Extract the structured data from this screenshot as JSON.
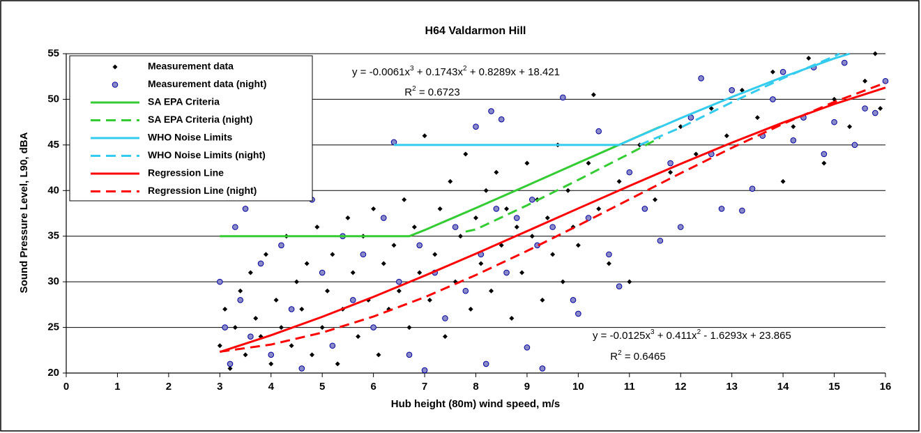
{
  "chart_data": {
    "type": "scatter",
    "title": "H64 Valdarmon Hill",
    "xlabel": "Hub height (80m) wind speed, m/s",
    "ylabel": "Sound Pressure Level, L90, dBA",
    "xlim": [
      0,
      16
    ],
    "ylim": [
      20,
      55
    ],
    "xticks": [
      0,
      1,
      2,
      3,
      4,
      5,
      6,
      7,
      8,
      9,
      10,
      11,
      12,
      13,
      14,
      15,
      16
    ],
    "yticks": [
      20,
      25,
      30,
      35,
      40,
      45,
      50,
      55
    ],
    "grid": true,
    "legend": "upper left",
    "annotations": [
      [
        "y = -0.0061x",
        "3",
        " + 0.1743x",
        "2",
        " + 0.8289x + 18.421"
      ],
      [
        "R",
        "2",
        " = 0.6723"
      ],
      [
        "y = -0.0125x",
        "3",
        " + 0.411x",
        "2",
        " - 1.6293x + 23.865"
      ],
      [
        "R",
        "2",
        " = 0.6465"
      ]
    ],
    "series": [
      {
        "name": "Measurement data",
        "marker": "diamond",
        "color": "#000000",
        "x": [
          3.0,
          3.1,
          3.2,
          3.3,
          3.4,
          3.5,
          3.6,
          3.7,
          3.8,
          3.9,
          4.0,
          4.1,
          4.2,
          4.3,
          4.4,
          4.5,
          4.6,
          4.7,
          4.8,
          4.9,
          5.0,
          5.1,
          5.2,
          5.3,
          5.4,
          5.5,
          5.6,
          5.7,
          5.8,
          5.9,
          6.0,
          6.1,
          6.2,
          6.3,
          6.4,
          6.5,
          6.6,
          6.7,
          6.8,
          6.9,
          7.0,
          7.1,
          7.2,
          7.3,
          7.4,
          7.5,
          7.6,
          7.7,
          7.8,
          7.9,
          8.0,
          8.1,
          8.2,
          8.3,
          8.4,
          8.5,
          8.6,
          8.7,
          8.8,
          8.9,
          9.0,
          9.1,
          9.2,
          9.3,
          9.4,
          9.5,
          9.6,
          9.7,
          9.8,
          9.9,
          10.0,
          10.2,
          10.3,
          10.4,
          10.6,
          10.8,
          11.0,
          11.2,
          11.5,
          11.8,
          12.0,
          12.3,
          12.6,
          12.9,
          13.2,
          13.5,
          13.8,
          14.0,
          14.2,
          14.5,
          14.8,
          15.0,
          15.3,
          15.6,
          15.8,
          15.9
        ],
        "values": [
          23,
          27,
          20.5,
          25,
          29,
          22,
          31,
          26,
          24,
          33,
          21,
          28,
          25,
          35,
          23,
          30,
          27,
          32,
          22,
          36,
          25,
          29,
          33,
          21,
          27,
          37,
          31,
          24,
          35,
          28,
          38,
          22,
          32,
          27,
          34,
          29,
          39,
          25,
          36,
          31,
          46,
          28,
          33,
          38,
          24,
          41,
          30,
          35,
          44,
          27,
          37,
          32,
          40,
          29,
          42,
          34,
          38,
          26,
          36,
          31,
          43,
          35,
          39,
          28,
          37,
          33,
          45,
          30,
          40,
          36,
          34,
          43,
          50.5,
          38,
          32,
          41,
          30,
          45,
          39,
          42,
          47,
          44,
          49,
          46,
          51,
          48,
          53,
          41,
          47,
          54.5,
          43,
          50,
          47,
          52,
          55,
          49
        ]
      },
      {
        "name": "Measurement data (night)",
        "marker": "circle",
        "color": "#0000a0",
        "x": [
          3.0,
          3.1,
          3.2,
          3.3,
          3.4,
          3.5,
          3.6,
          3.8,
          4.0,
          4.2,
          4.4,
          4.6,
          4.8,
          5.0,
          5.2,
          5.4,
          5.6,
          5.8,
          6.0,
          6.2,
          6.4,
          6.5,
          6.7,
          6.9,
          7.0,
          7.2,
          7.4,
          7.6,
          7.8,
          8.0,
          8.1,
          8.2,
          8.3,
          8.4,
          8.5,
          8.6,
          8.8,
          9.0,
          9.1,
          9.2,
          9.3,
          9.5,
          9.7,
          9.9,
          10.0,
          10.2,
          10.4,
          10.6,
          10.8,
          11.0,
          11.3,
          11.6,
          11.8,
          12.0,
          12.2,
          12.4,
          12.6,
          12.8,
          13.0,
          13.2,
          13.4,
          13.6,
          13.8,
          14.0,
          14.2,
          14.4,
          14.6,
          14.8,
          15.0,
          15.2,
          15.4,
          15.6,
          15.8,
          16.0
        ],
        "values": [
          30,
          25,
          21,
          36,
          28,
          38,
          24,
          32,
          22,
          34,
          27,
          20.5,
          39,
          31,
          23,
          35,
          28,
          33,
          25,
          37,
          45.3,
          30,
          22,
          34,
          20.3,
          31,
          26,
          36,
          29,
          47,
          33,
          21,
          48.7,
          38,
          47.8,
          31,
          37,
          22.8,
          39,
          34,
          20.5,
          36,
          50.2,
          28,
          26.5,
          37,
          46.5,
          33,
          29.5,
          42,
          38,
          34.5,
          43,
          36,
          48,
          52.3,
          44,
          38,
          51,
          37.8,
          40.2,
          46,
          50,
          53,
          45.5,
          48,
          53.5,
          44,
          47.5,
          54,
          45,
          49,
          48.5,
          52
        ]
      },
      {
        "name": "SA EPA Criteria",
        "marker": "line",
        "color": "#33cc33",
        "dashed": false,
        "x": [
          3,
          6.7,
          7,
          8,
          9,
          10,
          11,
          11.6
        ],
        "values": [
          35,
          35,
          35.67,
          38.08,
          40.55,
          43.04,
          45.51,
          47
        ]
      },
      {
        "name": "SA EPA Criteria (night)",
        "marker": "line",
        "color": "#33cc33",
        "dashed": true,
        "x": [
          7.8,
          8,
          9,
          10,
          11,
          11.6
        ],
        "values": [
          35.5,
          35.74,
          38.38,
          41.17,
          44.04,
          45.8
        ]
      },
      {
        "name": "WHO Noise Limits",
        "marker": "line",
        "color": "#33ccee",
        "dashed": false,
        "x": [
          6.4,
          10.8,
          11,
          12,
          13,
          14,
          15,
          15.3
        ],
        "values": [
          45,
          45,
          45.51,
          47.93,
          50.25,
          52.45,
          54.48,
          55
        ]
      },
      {
        "name": "WHO Noise Limits (night)",
        "marker": "line",
        "color": "#33ccee",
        "dashed": true,
        "x": [
          11.2,
          12,
          13,
          14,
          15,
          15.1
        ],
        "values": [
          45,
          46.9,
          49.68,
          52.31,
          54.71,
          55
        ]
      },
      {
        "name": "Regression Line",
        "marker": "line",
        "color": "#ff0000",
        "dashed": false,
        "x": [
          3,
          4,
          5,
          6,
          7,
          8,
          9,
          10,
          11,
          12,
          13,
          14,
          15,
          16
        ],
        "values": [
          22.31,
          24.14,
          26.16,
          28.35,
          30.67,
          33.08,
          35.55,
          38.04,
          40.51,
          42.93,
          45.25,
          47.45,
          49.48,
          51.28
        ]
      },
      {
        "name": "Regression Line (night)",
        "marker": "line",
        "color": "#ff0000",
        "dashed": true,
        "x": [
          3,
          4,
          5,
          6,
          7,
          8,
          9,
          10,
          11,
          12,
          13,
          14,
          15,
          16
        ],
        "values": [
          22.34,
          23.12,
          24.43,
          26.19,
          28.31,
          30.74,
          33.38,
          36.17,
          39.04,
          41.9,
          44.68,
          47.31,
          49.71,
          51.81
        ]
      }
    ]
  }
}
